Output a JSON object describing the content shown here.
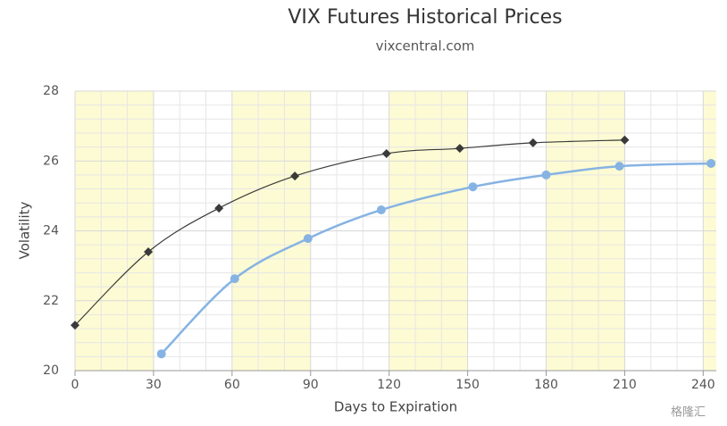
{
  "chart_data": {
    "type": "line",
    "title": "VIX Futures Historical Prices",
    "subtitle": "vixcentral.com",
    "x_label": "Days to Expiration",
    "y_label": "Volatility",
    "watermark": "格隆汇",
    "xlim": [
      0,
      245
    ],
    "xticks": [
      0,
      30,
      60,
      90,
      120,
      150,
      180,
      210,
      240
    ],
    "ylim": [
      20,
      28
    ],
    "yticks": [
      20,
      22,
      24,
      26,
      28
    ],
    "grid": true,
    "band_color": "#fdfbd3",
    "x_bands": [
      [
        0,
        30
      ],
      [
        60,
        90
      ],
      [
        120,
        150
      ],
      [
        180,
        210
      ],
      [
        240,
        245
      ]
    ],
    "series": [
      {
        "color": "#3a3a3a",
        "marker": "diamond",
        "x": [
          0,
          28,
          55,
          84,
          119,
          147,
          175,
          210
        ],
        "values": [
          21.3,
          23.4,
          24.65,
          25.57,
          26.21,
          26.36,
          26.52,
          26.6
        ]
      },
      {
        "color": "#86b3e3",
        "marker": "circle",
        "x": [
          33,
          61,
          89,
          117,
          152,
          180,
          208,
          243
        ],
        "values": [
          20.48,
          22.63,
          23.78,
          24.6,
          25.26,
          25.6,
          25.85,
          25.93
        ]
      }
    ]
  }
}
